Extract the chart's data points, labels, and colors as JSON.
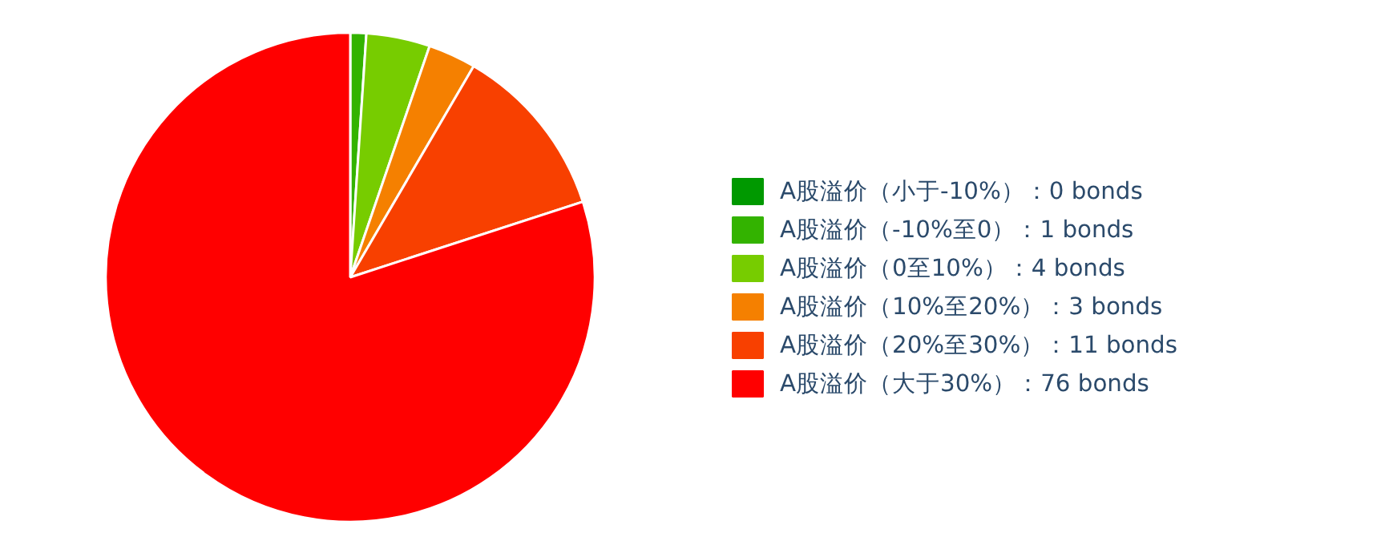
{
  "chart_data": {
    "type": "pie",
    "categories": [
      "A股溢价（小于-10%）",
      "A股溢价（-10%至0）",
      "A股溢价（0至10%）",
      "A股溢价（10%至20%）",
      "A股溢价（20%至30%）",
      "A股溢价（大于30%）"
    ],
    "values": [
      0,
      1,
      4,
      3,
      11,
      76
    ],
    "value_labels": [
      "：0 bonds",
      "：1 bonds",
      "：4 bonds",
      "：3 bonds",
      "：11 bonds",
      "：76 bonds"
    ],
    "colors": [
      "#009900",
      "#33b300",
      "#77cc00",
      "#f58000",
      "#f84000",
      "#ff0000"
    ],
    "legend": "right"
  }
}
